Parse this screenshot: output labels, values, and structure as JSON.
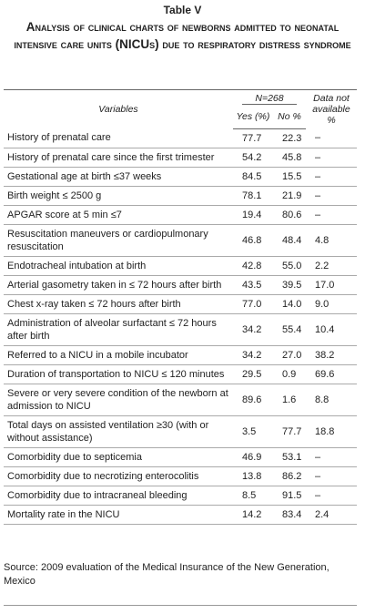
{
  "table_label": "Table V",
  "title": "Analysis of clinical charts of newborns admitted to neonatal intensive care units (NICUs) due to respiratory distress syndrome",
  "table": {
    "header": {
      "variables": "Variables",
      "n": "N=268",
      "yes": "Yes (%)",
      "no": "No %",
      "not_available": "Data not available %"
    },
    "rows": [
      [
        "History of prenatal care",
        "77.7",
        "22.3",
        "–"
      ],
      [
        "History of prenatal care since the first trimester",
        "54.2",
        "45.8",
        "–"
      ],
      [
        "Gestational age at birth ≤37 weeks",
        "84.5",
        "15.5",
        "–"
      ],
      [
        "Birth weight ≤ 2500 g",
        "78.1",
        "21.9",
        "–"
      ],
      [
        "APGAR score at 5 min ≤7",
        "19.4",
        "80.6",
        "–"
      ],
      [
        "Resuscitation maneuvers or cardiopulmonary resuscitation",
        "46.8",
        "48.4",
        "4.8"
      ],
      [
        "Endotracheal intubation at birth",
        "42.8",
        "55.0",
        "2.2"
      ],
      [
        "Arterial gasometry taken in ≤ 72 hours after birth",
        "43.5",
        "39.5",
        "17.0"
      ],
      [
        "Chest x-ray taken ≤ 72 hours after birth",
        "77.0",
        "14.0",
        "9.0"
      ],
      [
        "Administration of alveolar surfactant ≤ 72 hours after birth",
        "34.2",
        "55.4",
        "10.4"
      ],
      [
        "Referred to a NICU in a mobile incubator",
        "34.2",
        "27.0",
        "38.2"
      ],
      [
        "Duration of transportation to NICU ≤ 120 minutes",
        "29.5",
        "0.9",
        "69.6"
      ],
      [
        "Severe or very severe condition of the newborn at admission to NICU",
        "89.6",
        "1.6",
        "8.8"
      ],
      [
        "Total days on assisted ventilation ≥30 (with or without assistance)",
        "3.5",
        "77.7",
        "18.8"
      ],
      [
        "Comorbidity due to septicemia",
        "46.9",
        "53.1",
        "–"
      ],
      [
        "Comorbidity due to necrotizing enterocolitis",
        "13.8",
        "86.2",
        "–"
      ],
      [
        "Comorbidity due to intracraneal bleeding",
        "8.5",
        "91.5",
        "–"
      ],
      [
        "Mortality rate in the NICU",
        "14.2",
        "83.4",
        "2.4"
      ]
    ]
  },
  "source": "Source: 2009 evaluation of the Medical Insurance of the New Generation, Mexico"
}
